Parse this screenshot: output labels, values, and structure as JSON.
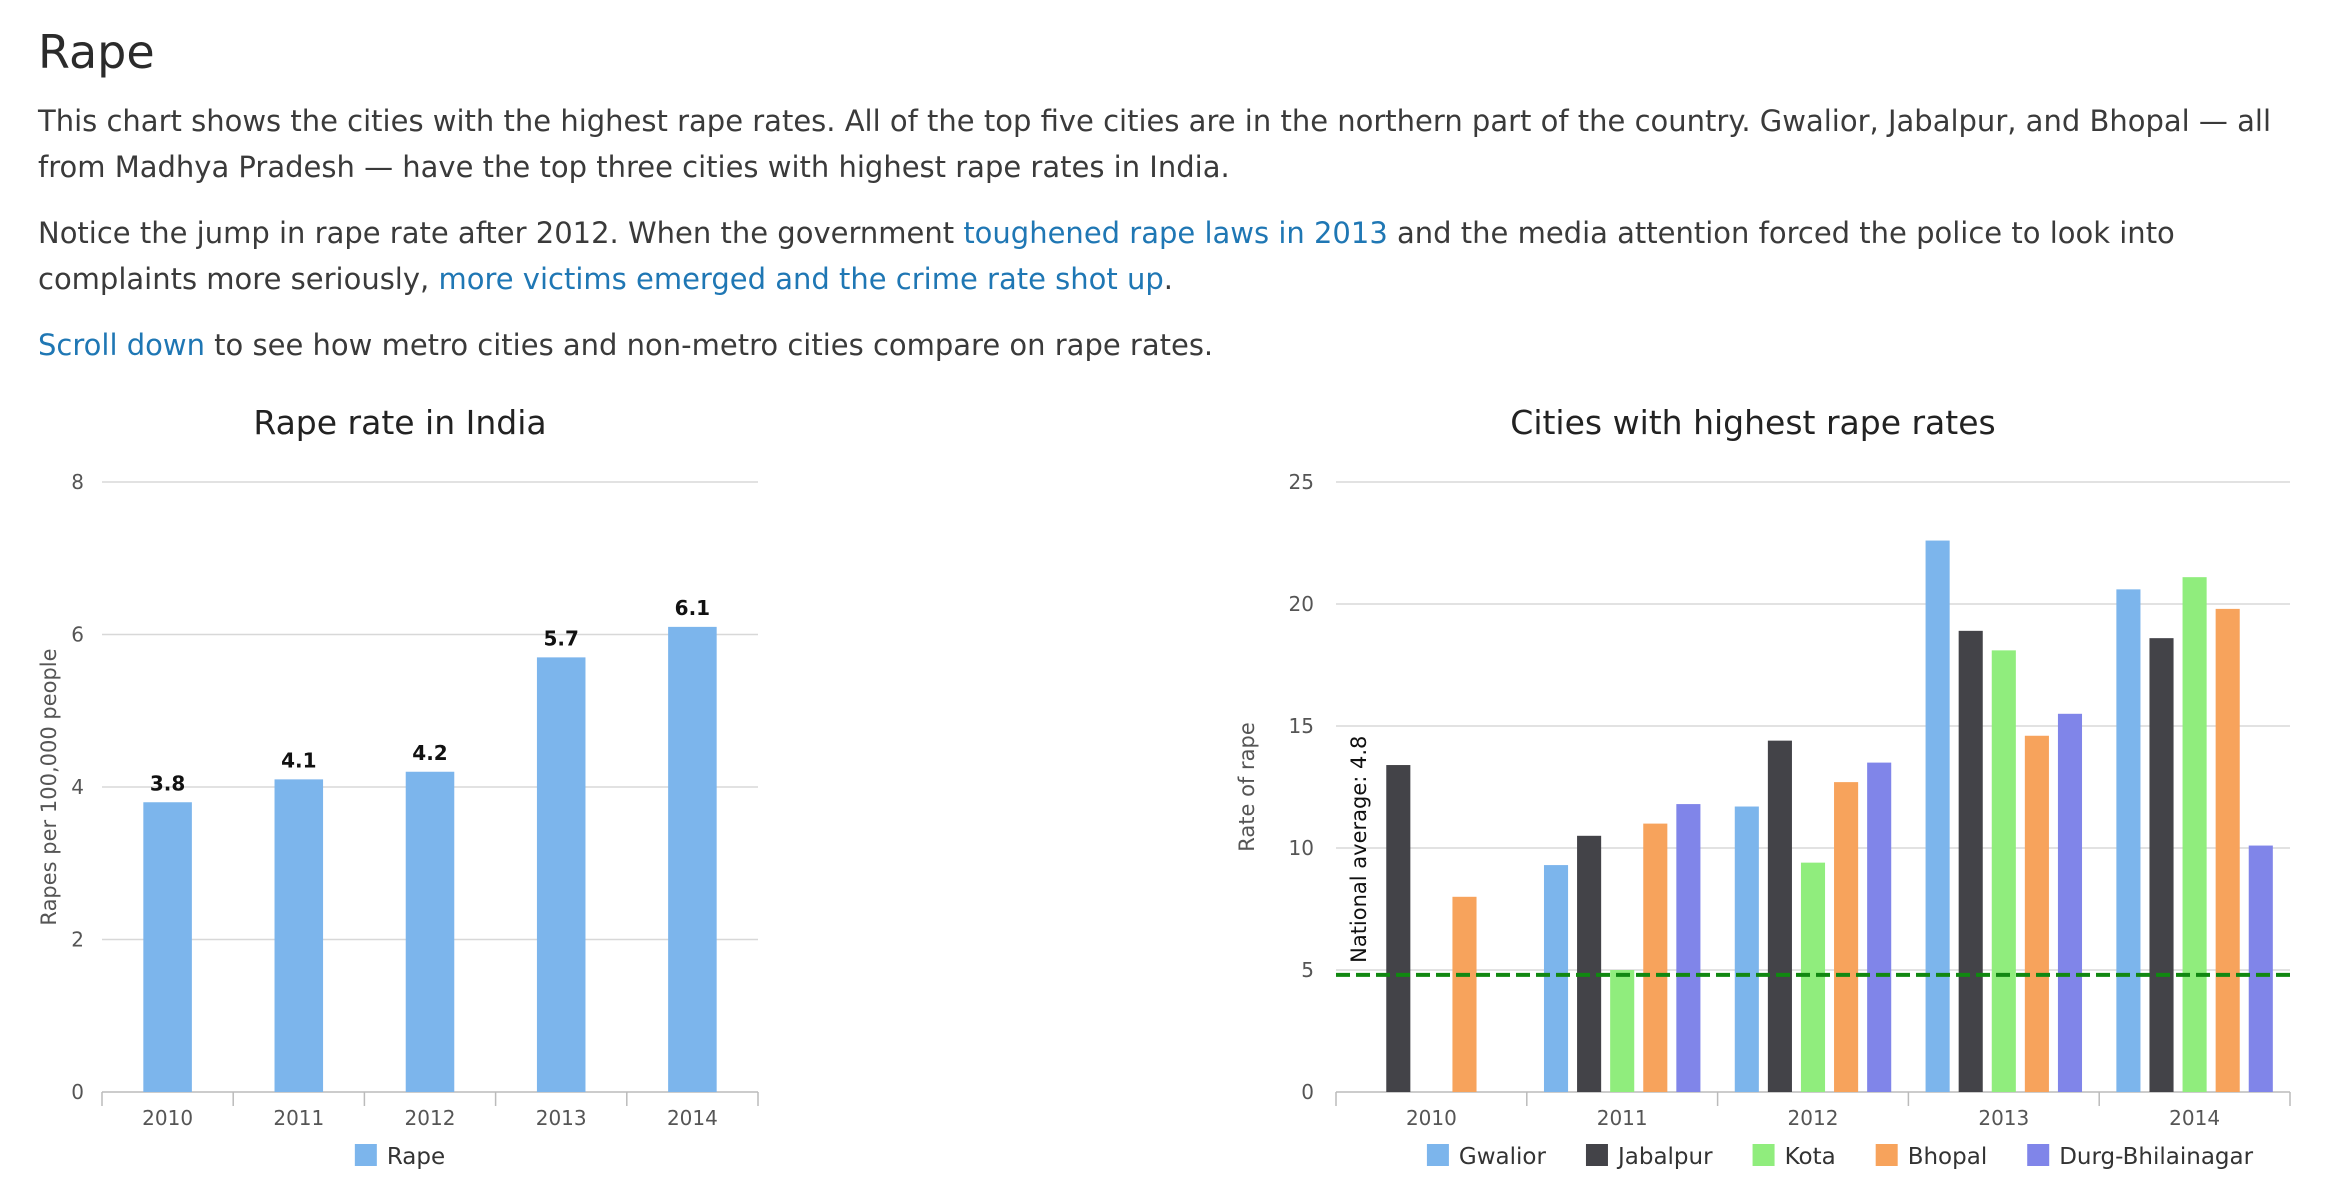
{
  "page": {
    "heading": "Rape",
    "para1": "This chart shows the cities with the highest rape rates. All of the top five cities are in the northern part of the country. Gwalior, Jabalpur, and Bhopal — all from Madhya Pradesh — have the top three cities with highest rape rates in India.",
    "para2_before": "Notice the jump in rape rate after 2012. When the government ",
    "para2_link1": "toughened rape laws in 2013",
    "para2_middle": " and the media attention forced the police to look into complaints more seriously, ",
    "para2_link2": "more victims emerged and the crime rate shot up",
    "para2_after": ".",
    "para3_link": "Scroll down",
    "para3_after": " to see how metro cities and non-metro cities compare on rape rates."
  },
  "chart_data": [
    {
      "type": "bar",
      "title": "Rape rate in India",
      "categories": [
        "2010",
        "2011",
        "2012",
        "2013",
        "2014"
      ],
      "series": [
        {
          "name": "Rape",
          "values": [
            3.8,
            4.1,
            4.2,
            5.7,
            6.1
          ],
          "color": "#7cb5ec"
        }
      ],
      "data_labels": [
        "3.8",
        "4.1",
        "4.2",
        "5.7",
        "6.1"
      ],
      "xlabel": "",
      "ylabel": "Rapes per 100,000 people",
      "ylim": [
        0,
        8
      ],
      "yticks": [
        0,
        2,
        4,
        6,
        8
      ],
      "grid": true,
      "legend": "bottom-center"
    },
    {
      "type": "bar",
      "title": "Cities with highest rape rates",
      "categories": [
        "2010",
        "2011",
        "2012",
        "2013",
        "2014"
      ],
      "series": [
        {
          "name": "Gwalior",
          "values": [
            null,
            9.3,
            11.7,
            22.6,
            20.6
          ],
          "color": "#7cb5ec"
        },
        {
          "name": "Jabalpur",
          "values": [
            13.4,
            10.5,
            14.4,
            18.9,
            18.6
          ],
          "color": "#434348"
        },
        {
          "name": "Kota",
          "values": [
            null,
            5.0,
            9.4,
            18.1,
            21.1
          ],
          "color": "#90ed7d"
        },
        {
          "name": "Bhopal",
          "values": [
            8.0,
            11.0,
            12.7,
            14.6,
            19.8
          ],
          "color": "#f7a35c"
        },
        {
          "name": "Durg-Bhilainagar",
          "values": [
            null,
            11.8,
            13.5,
            15.5,
            10.1
          ],
          "color": "#8085e9"
        }
      ],
      "reference_line": {
        "label": "National average: 4.8",
        "value": 4.8,
        "color": "#118811"
      },
      "xlabel": "",
      "ylabel": "Rate of rape",
      "ylim": [
        0,
        25
      ],
      "yticks": [
        0,
        5,
        10,
        15,
        20,
        25
      ],
      "grid": true,
      "legend": "bottom-right"
    }
  ]
}
